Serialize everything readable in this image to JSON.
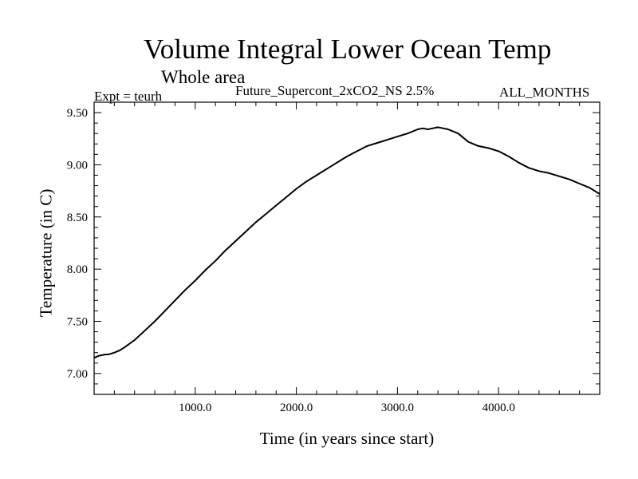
{
  "chart_data": {
    "type": "line",
    "title": "Volume Integral Lower Ocean Temp",
    "subtitle": "Whole area",
    "annotations": {
      "expt": "Expt = teurh",
      "run": "Future_Supercont_2xCO2_NS 2.5%",
      "months": "ALL_MONTHS"
    },
    "xlabel": "Time (in years since start)",
    "ylabel": "Temperature (in C)",
    "xlim": [
      0,
      5000
    ],
    "ylim": [
      6.8,
      9.6
    ],
    "xticks": [
      1000,
      2000,
      3000,
      4000
    ],
    "xtick_labels": [
      "1000.0",
      "2000.0",
      "3000.0",
      "4000.0"
    ],
    "yticks": [
      7.0,
      7.5,
      8.0,
      8.5,
      9.0,
      9.5
    ],
    "ytick_labels": [
      "7.00",
      "7.50",
      "8.00",
      "8.50",
      "9.00",
      "9.50"
    ],
    "grid": false,
    "series": [
      {
        "x": [
          0,
          50,
          100,
          150,
          200,
          250,
          300,
          400,
          500,
          600,
          700,
          800,
          900,
          1000,
          1100,
          1200,
          1300,
          1400,
          1500,
          1600,
          1700,
          1800,
          1900,
          2000,
          2100,
          2200,
          2300,
          2400,
          2500,
          2600,
          2700,
          2800,
          2900,
          3000,
          3100,
          3200,
          3250,
          3300,
          3350,
          3400,
          3450,
          3500,
          3600,
          3700,
          3800,
          3900,
          4000,
          4100,
          4200,
          4300,
          4400,
          4500,
          4600,
          4700,
          4800,
          4900,
          5000
        ],
        "y": [
          7.15,
          7.17,
          7.18,
          7.185,
          7.2,
          7.22,
          7.25,
          7.32,
          7.41,
          7.5,
          7.6,
          7.7,
          7.8,
          7.89,
          7.99,
          8.08,
          8.18,
          8.27,
          8.36,
          8.45,
          8.53,
          8.61,
          8.69,
          8.77,
          8.84,
          8.9,
          8.96,
          9.02,
          9.08,
          9.13,
          9.18,
          9.21,
          9.24,
          9.27,
          9.3,
          9.34,
          9.35,
          9.34,
          9.35,
          9.36,
          9.35,
          9.34,
          9.3,
          9.22,
          9.18,
          9.16,
          9.13,
          9.08,
          9.02,
          8.97,
          8.94,
          8.92,
          8.89,
          8.86,
          8.82,
          8.78,
          8.72
        ]
      }
    ]
  },
  "colors": {
    "line": "#000000",
    "axes": "#000000",
    "background": "#ffffff"
  }
}
